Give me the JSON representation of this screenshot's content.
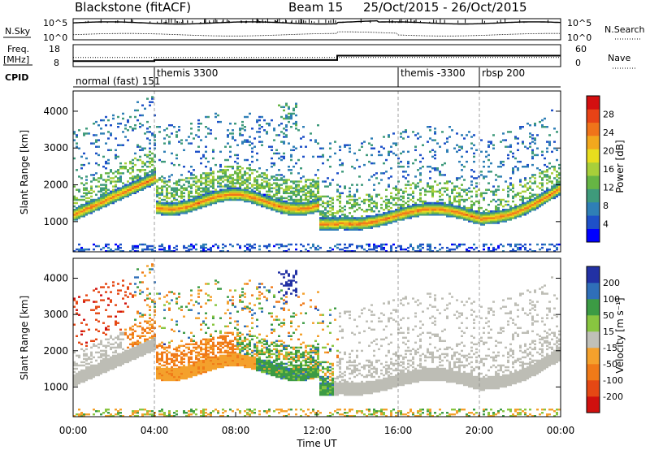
{
  "header": {
    "site": "Blackstone (fitACF)",
    "beam": "Beam 15",
    "dates": "25/Oct/2015 - 26/Oct/2015"
  },
  "noise_panel": {
    "left_label": "N.Sky",
    "right_label": "N.Search",
    "top_tick": "10^5",
    "bottom_tick": "10^0"
  },
  "freq_panel": {
    "left_label_line1": "Freq.",
    "left_label_line2": "[MHz]",
    "right_label": "Nave",
    "left_top_tick": "18",
    "left_bottom_tick": "8",
    "right_top_tick": "60",
    "right_bottom_tick": "0"
  },
  "cpid_panel": {
    "label": "CPID",
    "segments": [
      {
        "name": "normal (fast) 151",
        "start": 0,
        "end": 4
      },
      {
        "name": "themis 3300",
        "start": 4,
        "end": 16
      },
      {
        "name": "themis -3300",
        "start": 16,
        "end": 20
      },
      {
        "name": "rbsp 200",
        "start": 20,
        "end": 24
      }
    ]
  },
  "colorbars": {
    "power": {
      "label": "Power [dB]",
      "ticks": [
        "28",
        "24",
        "20",
        "16",
        "12",
        "8",
        "4"
      ]
    },
    "velocity": {
      "label": "Velocity [m s⁻¹]",
      "ticks": [
        "200",
        "100",
        "50",
        "15",
        "-15",
        "-50",
        "-100",
        "-200"
      ]
    }
  },
  "colors": {
    "power_scale": [
      "#0000ff",
      "#1e50c8",
      "#2f7fb6",
      "#3e9a7b",
      "#66b544",
      "#a8cf3a",
      "#e8dd1e",
      "#f2a81d",
      "#f0741a",
      "#e84316",
      "#d40f10"
    ],
    "velocity_scale": [
      "#2231a4",
      "#2f6fb8",
      "#3c9b44",
      "#88c540",
      "#c0c0b8",
      "#f4a12c",
      "#f07a18",
      "#e54814",
      "#d0100e"
    ],
    "ground_scatter": "#bdbdb5"
  },
  "chart_data": [
    {
      "type": "line",
      "title": "Blackstone (fitACF) Beam 15 25/Oct/2015 - 26/Oct/2015",
      "panel": "noise",
      "series": [
        {
          "name": "N.Sky"
        },
        {
          "name": "N.Search"
        }
      ],
      "ylim_log10": [
        0,
        5
      ]
    },
    {
      "type": "line",
      "panel": "frequency",
      "series": [
        {
          "name": "Freq.",
          "x": [
            0,
            4,
            4,
            13,
            13,
            24
          ],
          "values": [
            10.5,
            10.5,
            11,
            11,
            13,
            13
          ]
        },
        {
          "name": "Nave",
          "x": [
            0,
            20,
            24
          ],
          "values": [
            25,
            25,
            25
          ]
        }
      ],
      "ylim": [
        8,
        18
      ]
    },
    {
      "type": "heatmap",
      "panel": "power",
      "xlabel": "",
      "ylabel": "Slant Range [km]",
      "xlim": [
        0,
        24
      ],
      "ylim": [
        180,
        4550
      ],
      "yticks": [
        1000,
        2000,
        3000,
        4000
      ],
      "colorbar": {
        "label": "Power [dB]",
        "range": [
          0,
          30
        ]
      }
    },
    {
      "type": "heatmap",
      "panel": "velocity",
      "xlabel": "Time UT",
      "ylabel": "Slant Range [km]",
      "xlim": [
        0,
        24
      ],
      "ylim": [
        180,
        4550
      ],
      "yticks": [
        1000,
        2000,
        3000,
        4000
      ],
      "xticks": [
        "00:00",
        "04:00",
        "08:00",
        "12:00",
        "16:00",
        "20:00",
        "00:00"
      ],
      "colorbar": {
        "label": "Velocity [m s⁻¹]",
        "range": [
          -200,
          200
        ]
      }
    }
  ]
}
